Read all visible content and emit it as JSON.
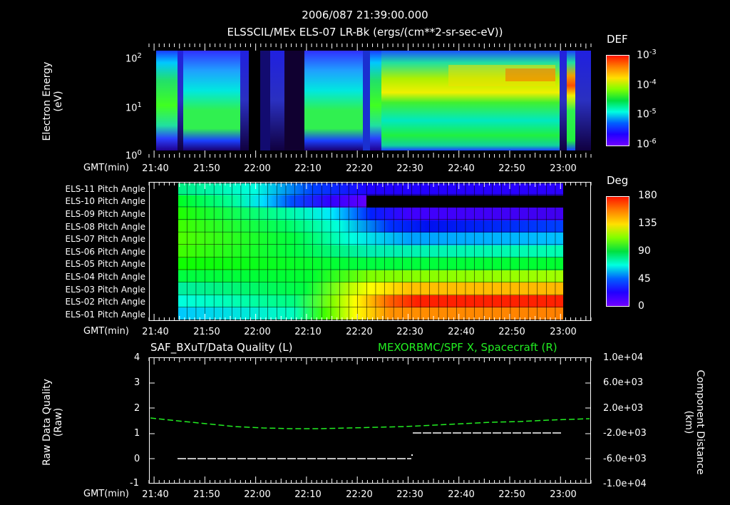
{
  "header": {
    "timestamp": "2006/087 21:39:00.000",
    "subtitle": "ELSSCIL/MEx ELS-07 LR-Bk  (ergs/(cm**2-sr-sec-eV))"
  },
  "time_axis": {
    "label": "GMT(min)",
    "ticks": [
      "21:40",
      "21:50",
      "22:00",
      "22:10",
      "22:20",
      "22:30",
      "22:40",
      "22:50",
      "23:00"
    ]
  },
  "panel1": {
    "ylabel_line1": "Electron Energy",
    "ylabel_line2": "(eV)",
    "yticks": [
      {
        "base": "10",
        "exp": "2"
      },
      {
        "base": "10",
        "exp": "1"
      },
      {
        "base": "10",
        "exp": "0"
      }
    ],
    "colorbar": {
      "title": "DEF",
      "labels": [
        {
          "base": "10",
          "exp": "-3"
        },
        {
          "base": "10",
          "exp": "-4"
        },
        {
          "base": "10",
          "exp": "-5"
        },
        {
          "base": "10",
          "exp": "-6"
        }
      ]
    }
  },
  "panel2": {
    "rows": [
      "ELS-11 Pitch Angle",
      "ELS-10 Pitch Angle",
      "ELS-09 Pitch Angle",
      "ELS-08 Pitch Angle",
      "ELS-07 Pitch Angle",
      "ELS-06 Pitch Angle",
      "ELS-05 Pitch Angle",
      "ELS-04 Pitch Angle",
      "ELS-03 Pitch Angle",
      "ELS-02 Pitch Angle",
      "ELS-01 Pitch Angle"
    ],
    "colorbar": {
      "title": "Deg",
      "labels": [
        "180",
        "135",
        "90",
        "45",
        "0"
      ]
    }
  },
  "panel3": {
    "left_title": "SAF_BXuT/Data Quality (L)",
    "right_title": "MEXORBMC/SPF X, Spacecraft (R)",
    "right_title_color": "#22ee22",
    "ylabel_left_line1": "Raw Data Quality",
    "ylabel_left_line2": "(Raw)",
    "yticks_left": [
      "4",
      "3",
      "2",
      "1",
      "0",
      "-1"
    ],
    "ylabel_right_line1": "Component Distance",
    "ylabel_right_line2": "(km)",
    "yticks_right": [
      "1.0e+04",
      "6.0e+03",
      "2.0e+03",
      "-2.0e+03",
      "-6.0e+03",
      "-1.0e+04"
    ]
  },
  "chart_data": [
    {
      "type": "heatmap",
      "title": "ELSSCIL/MEx ELS-07 LR-Bk (ergs/(cm**2-sr-sec-eV))",
      "xlabel": "GMT(min)",
      "ylabel": "Electron Energy (eV)",
      "x_range": [
        "21:39",
        "23:06"
      ],
      "y_scale": "log",
      "ylim": [
        1,
        150
      ],
      "colorbar": {
        "label": "DEF",
        "scale": "log",
        "range": [
          1e-06,
          0.001
        ]
      },
      "description": "Electron energy spectrogram; high flux 21:39-21:44, 21:46-21:57, 22:11-22:20, 22:24-22:57 (yellow/red peaks ~50-80 eV near 22:45-22:57), low flux gap 21:57-22:07 and after 23:00"
    },
    {
      "type": "heatmap",
      "title": "Pitch Angle",
      "xlabel": "GMT(min)",
      "categories": [
        "ELS-11",
        "ELS-10",
        "ELS-09",
        "ELS-08",
        "ELS-07",
        "ELS-06",
        "ELS-05",
        "ELS-04",
        "ELS-03",
        "ELS-02",
        "ELS-01"
      ],
      "x_range": [
        "21:45",
        "22:59"
      ],
      "colorbar": {
        "label": "Deg",
        "range": [
          0,
          180
        ]
      },
      "late_values_deg": {
        "ELS-11": 15,
        "ELS-10": 10,
        "ELS-09": 15,
        "ELS-08": 20,
        "ELS-07": 55,
        "ELS-06": 75,
        "ELS-05": 95,
        "ELS-04": 120,
        "ELS-03": 150,
        "ELS-02": 175,
        "ELS-01": 160
      },
      "early_values_deg": {
        "ELS-11": 95,
        "ELS-10": 100,
        "ELS-09": 105,
        "ELS-08": 110,
        "ELS-07": 110,
        "ELS-06": 110,
        "ELS-05": 100,
        "ELS-04": 95,
        "ELS-03": 85,
        "ELS-02": 65,
        "ELS-01": 55
      }
    },
    {
      "type": "line",
      "title": "SAF_BXuT/Data Quality (L) / MEXORBMC/SPF X, Spacecraft (R)",
      "xlabel": "GMT(min)",
      "ylabel": "Raw Data Quality (Raw)",
      "ylim": [
        -1,
        4
      ],
      "y2label": "Component Distance (km)",
      "y2lim": [
        -10000,
        10000
      ],
      "series": [
        {
          "name": "Data Quality (L)",
          "color": "#ffffff",
          "style": "dashed",
          "points": [
            [
              "21:45",
              0
            ],
            [
              "22:30",
              0
            ],
            [
              "22:30",
              1
            ],
            [
              "22:59",
              1
            ]
          ]
        },
        {
          "name": "SPF X Spacecraft (R)",
          "color": "#22ee22",
          "style": "dashed",
          "axis": "right",
          "points": [
            [
              "21:39",
              1300
            ],
            [
              "21:50",
              600
            ],
            [
              "22:00",
              -200
            ],
            [
              "22:10",
              -500
            ],
            [
              "22:20",
              -600
            ],
            [
              "22:30",
              -400
            ],
            [
              "22:40",
              200
            ],
            [
              "22:50",
              700
            ],
            [
              "23:05",
              1100
            ]
          ]
        }
      ]
    }
  ]
}
